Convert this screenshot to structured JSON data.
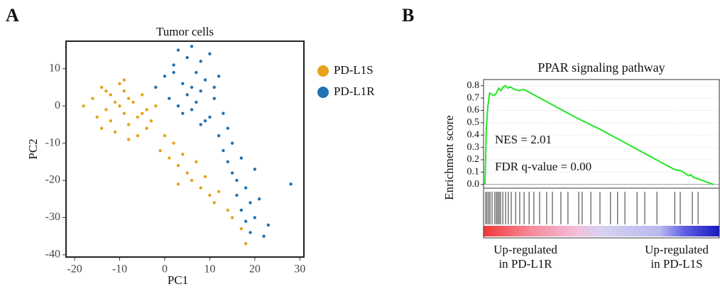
{
  "chart_data": [
    {
      "type": "scatter",
      "panel": "A",
      "title": "Tumor cells",
      "xlabel": "PC1",
      "ylabel": "PC2",
      "xlim": [
        -21.9,
        30.9
      ],
      "ylim": [
        -40.6,
        17.4
      ],
      "xticks": [
        -20,
        -10,
        0,
        10,
        20,
        30
      ],
      "yticks": [
        -40,
        -30,
        -20,
        -10,
        0,
        10
      ],
      "series": [
        {
          "name": "PD-L1S",
          "color": "#e6a319",
          "x": [
            -18,
            -16,
            -15,
            -14,
            -13,
            -12,
            -12,
            -11,
            -10,
            -10,
            -9,
            -9,
            -8,
            -8,
            -7,
            -6,
            -5,
            -4,
            -3,
            -2,
            -14,
            -11,
            -9,
            -6,
            -13,
            -8,
            -4,
            -1,
            1,
            2,
            3,
            4,
            5,
            6,
            7,
            8,
            9,
            10,
            11,
            12,
            14,
            15,
            17,
            18,
            -5,
            0,
            3
          ],
          "values": [
            0,
            2,
            -3,
            5,
            -1,
            3,
            -4,
            1,
            0,
            6,
            -2,
            4,
            -5,
            2,
            1,
            -3,
            3,
            -1,
            -4,
            0,
            -6,
            -7,
            7,
            -8,
            4,
            -9,
            -6,
            -12,
            -14,
            -10,
            -16,
            -13,
            -18,
            -20,
            -15,
            -22,
            -19,
            -24,
            -26,
            -23,
            -28,
            -30,
            -33,
            -37,
            -2,
            -8,
            -21
          ]
        },
        {
          "name": "PD-L1R",
          "color": "#1f72b4",
          "x": [
            -2,
            0,
            1,
            2,
            3,
            4,
            5,
            5,
            6,
            6,
            7,
            7,
            8,
            8,
            9,
            10,
            11,
            12,
            13,
            14,
            3,
            6,
            9,
            11,
            4,
            8,
            12,
            13,
            14,
            15,
            15,
            16,
            16,
            17,
            17,
            18,
            18,
            19,
            19,
            20,
            20,
            21,
            22,
            23,
            28,
            10,
            2
          ],
          "values": [
            5,
            8,
            2,
            11,
            0,
            6,
            3,
            13,
            5,
            -1,
            9,
            1,
            4,
            12,
            7,
            -3,
            2,
            8,
            -2,
            -6,
            15,
            16,
            -4,
            5,
            -2,
            -5,
            -8,
            -12,
            -15,
            -18,
            -10,
            -20,
            -24,
            -14,
            -28,
            -22,
            -31,
            -26,
            -34,
            -17,
            -30,
            -25,
            -35,
            -32,
            -21,
            14,
            9
          ]
        }
      ]
    },
    {
      "type": "gsea",
      "panel": "B",
      "title": "PPAR signaling pathway",
      "ylabel": "Enrichment score",
      "annotations": [
        "NES = 2.01",
        "FDR q-value = 0.00"
      ],
      "left_label": [
        "Up-regulated",
        "in PD-L1R"
      ],
      "right_label": [
        "Up-regulated",
        "in PD-L1S"
      ],
      "xlim": [
        0,
        100
      ],
      "ylim": [
        -0.03,
        0.85
      ],
      "grid": true,
      "color": "#22e622",
      "yticks": [
        {
          "value": 0,
          "label": "0.0"
        },
        0.1,
        0.2,
        0.3,
        0.4,
        0.5,
        0.6,
        0.7,
        0.8
      ],
      "x": [
        0,
        0.6,
        1.2,
        2,
        4,
        5,
        6,
        7,
        8,
        9,
        10,
        11,
        13,
        15,
        17,
        20,
        30,
        40,
        50,
        60,
        70,
        80,
        83,
        86,
        89,
        90,
        91,
        100
      ],
      "values": [
        0,
        0.45,
        0.62,
        0.74,
        0.72,
        0.74,
        0.78,
        0.76,
        0.79,
        0.8,
        0.78,
        0.79,
        0.77,
        0.76,
        0.77,
        0.74,
        0.64,
        0.54,
        0.45,
        0.35,
        0.25,
        0.15,
        0.12,
        0.11,
        0.07,
        0.08,
        0.06,
        0
      ],
      "hits": [
        0.3,
        0.9,
        1.6,
        2.2,
        3.1,
        4.3,
        5,
        5.6,
        6.2,
        6.8,
        7.8,
        9,
        10.2,
        11.5,
        13.4,
        15.2,
        17.1,
        19.3,
        21.4,
        23.9,
        27,
        29.5,
        33.2,
        36.3,
        41,
        42.5,
        46.3,
        50.3,
        54.9,
        58,
        61.2,
        66.5,
        69.9,
        75.2,
        83,
        85.4,
        90.7,
        93.2
      ]
    }
  ]
}
